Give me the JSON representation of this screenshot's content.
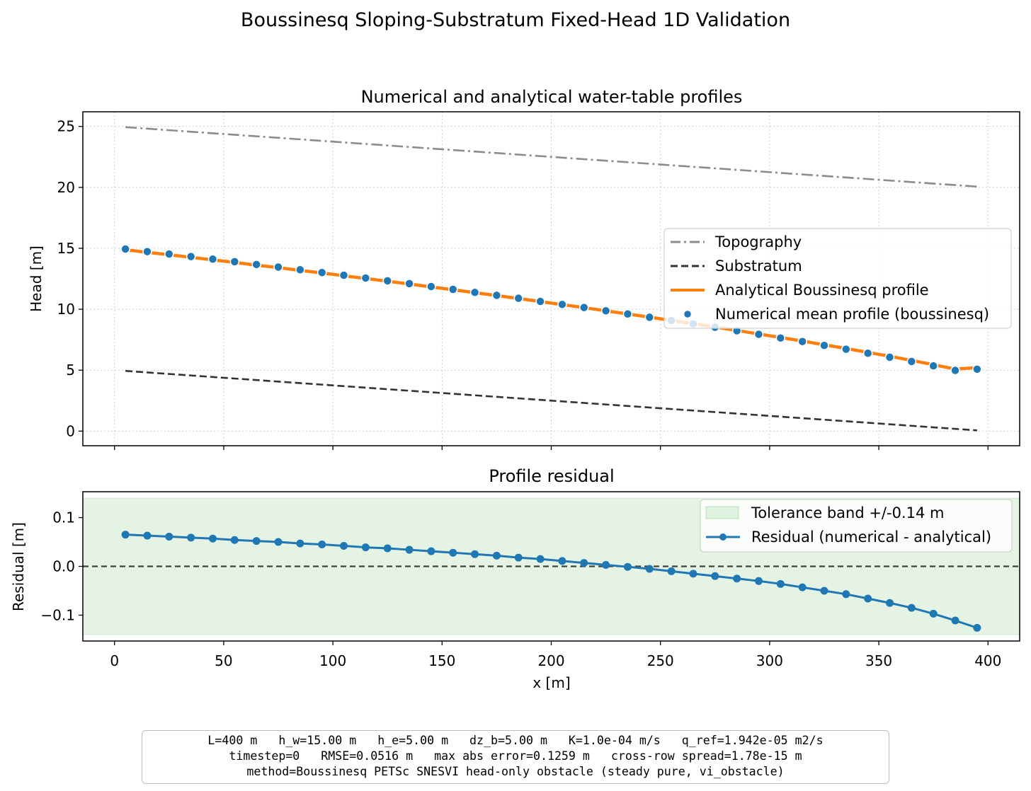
{
  "figure": {
    "suptitle": "Boussinesq Sloping-Substratum Fixed-Head 1D Validation"
  },
  "colors": {
    "topography": "#8c8c8c",
    "substratum": "#333333",
    "analytical": "#ff7f0e",
    "numerical": "#1f77b4",
    "tolerance": "#2ca02c"
  },
  "chart_data": [
    {
      "type": "line",
      "title": "Numerical and analytical water-table profiles",
      "xlabel": "",
      "ylabel": "Head [m]",
      "xlim": [
        -14.5,
        414.5
      ],
      "ylim": [
        -1.2,
        26.2
      ],
      "yticks": [
        0,
        5,
        10,
        15,
        20,
        25
      ],
      "grid": true,
      "legend_position": "center-right",
      "x": [
        5,
        15,
        25,
        35,
        45,
        55,
        65,
        75,
        85,
        95,
        105,
        115,
        125,
        135,
        145,
        155,
        165,
        175,
        185,
        195,
        205,
        215,
        225,
        235,
        245,
        255,
        265,
        275,
        285,
        295,
        305,
        315,
        325,
        335,
        345,
        355,
        365,
        375,
        385,
        395
      ],
      "series": [
        {
          "name": "Topography",
          "style": "dashdot",
          "x": [
            5,
            395
          ],
          "values": [
            24.94,
            20.06
          ]
        },
        {
          "name": "Substratum",
          "style": "dashed",
          "x": [
            5,
            395
          ],
          "values": [
            4.94,
            0.06
          ]
        },
        {
          "name": "Analytical Boussinesq profile",
          "style": "solid",
          "values": [
            14.88,
            14.67,
            14.47,
            14.26,
            14.05,
            13.84,
            13.62,
            13.41,
            13.19,
            12.97,
            12.75,
            12.52,
            12.3,
            12.07,
            11.83,
            11.6,
            11.36,
            11.12,
            10.88,
            10.63,
            10.38,
            10.13,
            9.87,
            9.61,
            9.35,
            9.08,
            8.81,
            8.54,
            8.26,
            7.97,
            7.68,
            7.39,
            7.08,
            6.78,
            6.46,
            6.14,
            5.8,
            5.45,
            5.09,
            5.21
          ]
        },
        {
          "name": "Numerical mean profile (boussinesq)",
          "style": "markers",
          "values": [
            14.94,
            14.73,
            14.53,
            14.32,
            14.11,
            13.9,
            13.67,
            13.46,
            13.24,
            13.01,
            12.79,
            12.56,
            12.33,
            12.1,
            11.86,
            11.63,
            11.38,
            11.14,
            10.9,
            10.64,
            10.39,
            10.14,
            9.87,
            9.61,
            9.34,
            9.07,
            8.8,
            8.52,
            8.23,
            7.94,
            7.64,
            7.35,
            7.03,
            6.72,
            6.39,
            6.06,
            5.71,
            5.35,
            4.98,
            5.08
          ]
        }
      ]
    },
    {
      "type": "line",
      "title": "Profile residual",
      "xlabel": "x [m]",
      "ylabel": "Residual [m]",
      "xlim": [
        -14.5,
        414.5
      ],
      "ylim": [
        -0.153,
        0.153
      ],
      "xticks": [
        0,
        50,
        100,
        150,
        200,
        250,
        300,
        350,
        400
      ],
      "yticks": [
        0.1,
        0.0,
        -0.1
      ],
      "ytick_labels": [
        "0.1",
        "0.0",
        "−0.1"
      ],
      "grid": false,
      "legend_position": "top-right",
      "tolerance": 0.14,
      "tolerance_label": "Tolerance band +/-0.14 m",
      "x": [
        5,
        15,
        25,
        35,
        45,
        55,
        65,
        75,
        85,
        95,
        105,
        115,
        125,
        135,
        145,
        155,
        165,
        175,
        185,
        195,
        205,
        215,
        225,
        235,
        245,
        255,
        265,
        275,
        285,
        295,
        305,
        315,
        325,
        335,
        345,
        355,
        365,
        375,
        385,
        395
      ],
      "series": [
        {
          "name": "Residual (numerical - analytical)",
          "values": [
            0.065,
            0.063,
            0.061,
            0.059,
            0.057,
            0.054,
            0.052,
            0.05,
            0.047,
            0.045,
            0.042,
            0.039,
            0.037,
            0.034,
            0.031,
            0.028,
            0.025,
            0.022,
            0.018,
            0.015,
            0.011,
            0.007,
            0.003,
            -0.001,
            -0.005,
            -0.01,
            -0.015,
            -0.02,
            -0.025,
            -0.03,
            -0.036,
            -0.043,
            -0.05,
            -0.057,
            -0.066,
            -0.075,
            -0.085,
            -0.097,
            -0.111,
            -0.126
          ]
        }
      ]
    }
  ],
  "info": {
    "line1": "L=400 m   h_w=15.00 m   h_e=5.00 m   dz_b=5.00 m   K=1.0e-04 m/s   q_ref=1.942e-05 m2/s",
    "line2": "timestep=0   RMSE=0.0516 m   max abs error=0.1259 m   cross-row spread=1.78e-15 m",
    "line3": "method=Boussinesq PETSc SNESVI head-only obstacle (steady pure, vi_obstacle)"
  }
}
